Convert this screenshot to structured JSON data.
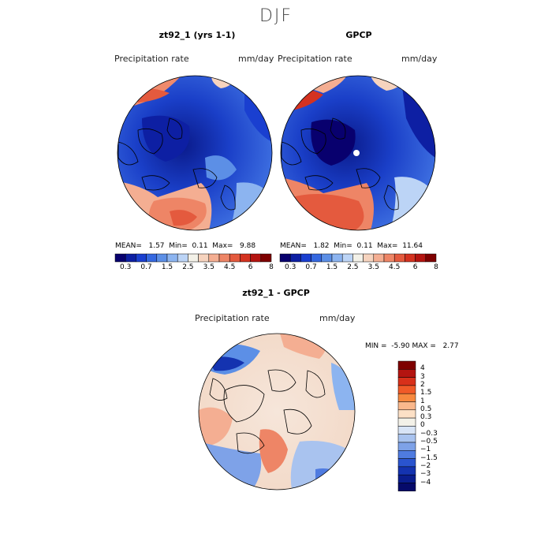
{
  "title": "DJF",
  "panels": [
    {
      "title": "zt92_1 (yrs 1-1)",
      "variable": "Precipitation rate",
      "units": "mm/day",
      "mean_label": "MEAN=",
      "mean": "1.57",
      "min_label": "Min=",
      "min": "0.11",
      "max_label": "Max=",
      "max": "9.88"
    },
    {
      "title": "GPCP",
      "variable": "Precipitation rate",
      "units": "mm/day",
      "mean_label": "MEAN=",
      "mean": "1.82",
      "min_label": "Min=",
      "min": "0.11",
      "max_label": "Max=",
      "max": "11.64"
    },
    {
      "title": "zt92_1 - GPCP",
      "variable": "Precipitation rate",
      "units": "mm/day",
      "min_label": "MIN =",
      "min": "-5.90",
      "max_label": "MAX =",
      "max": "2.77"
    }
  ],
  "colorbar_abs": {
    "colors": [
      "#08006e",
      "#0d1fa3",
      "#1a3fd0",
      "#3568e0",
      "#5c8fe6",
      "#8cb4f0",
      "#bcd4f6",
      "#f3f1e8",
      "#f6d3be",
      "#f4ae92",
      "#ee8566",
      "#e45a3e",
      "#d43220",
      "#b41410",
      "#7e0000"
    ],
    "labels": [
      "0.3",
      "0.7",
      "1.5",
      "2.5",
      "3.5",
      "4.5",
      "6",
      "8"
    ]
  },
  "colorbar_diff": {
    "colors": [
      "#7e0000",
      "#b41410",
      "#d8301a",
      "#f05a28",
      "#f7893f",
      "#fab88c",
      "#fce0c6",
      "#f3f1e8",
      "#d8e4f6",
      "#a9c3ef",
      "#7ea2e8",
      "#4f7be0",
      "#2a54cf",
      "#1433b0",
      "#0a1d8e",
      "#060a6a"
    ],
    "labels": [
      "4",
      "3",
      "2",
      "1.5",
      "1",
      "0.5",
      "0.3",
      "0",
      "−0.3",
      "−0.5",
      "−1",
      "−1.5",
      "−2",
      "−3",
      "−4"
    ]
  }
}
